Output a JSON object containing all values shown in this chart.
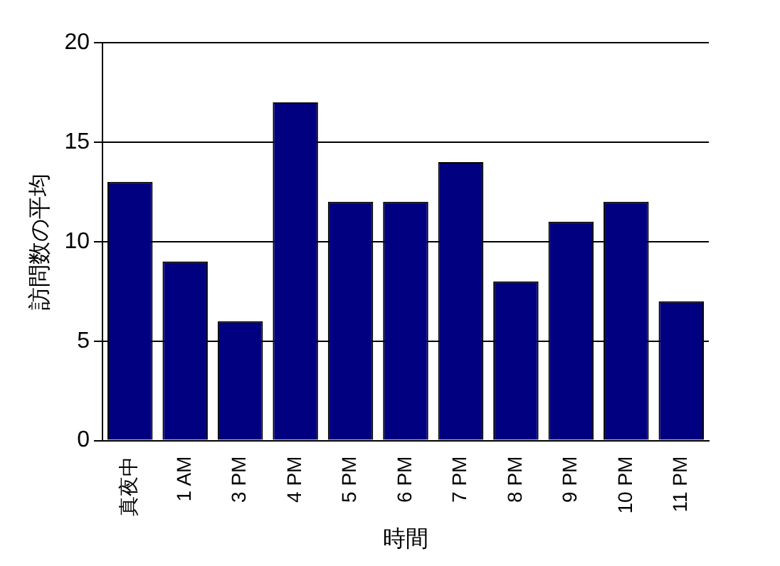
{
  "chart_data": {
    "type": "bar",
    "xlabel": "時間",
    "ylabel": "訪問数の平均",
    "categories": [
      "真夜中",
      "1 AM",
      "3 PM",
      "4 PM",
      "5 PM",
      "6 PM",
      "7 PM",
      "8 PM",
      "9 PM",
      "10 PM",
      "11 PM"
    ],
    "values": [
      13,
      9,
      6,
      17,
      12,
      12,
      14,
      8,
      11,
      12,
      7
    ],
    "color": "#000080",
    "ylim": [
      0,
      20
    ],
    "yticks": [
      0,
      5,
      10,
      15,
      20
    ],
    "grid": "y",
    "legend": false
  }
}
